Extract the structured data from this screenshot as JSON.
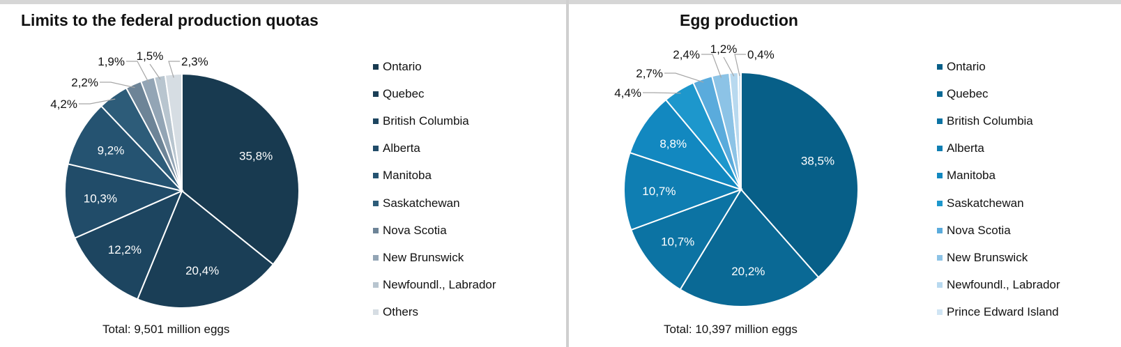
{
  "chart_data": [
    {
      "type": "pie",
      "title": "Limits to the federal production quotas",
      "total_label": "Total: 9,501 million eggs",
      "categories": [
        "Ontario",
        "Quebec",
        "British Columbia",
        "Alberta",
        "Manitoba",
        "Saskatchewan",
        "Nova Scotia",
        "New Brunswick",
        "Newfoundl., Labrador",
        "Others"
      ],
      "values": [
        35.8,
        20.4,
        12.2,
        10.3,
        9.2,
        4.2,
        2.2,
        1.9,
        1.5,
        2.3
      ],
      "labels": [
        "35,8%",
        "20,4%",
        "12,2%",
        "10,3%",
        "9,2%",
        "4,2%",
        "2,2%",
        "1,9%",
        "1,5%",
        "2,3%"
      ],
      "colors": [
        "#183a50",
        "#1a3e56",
        "#1d4560",
        "#214c69",
        "#255371",
        "#2d5c79",
        "#6d8497",
        "#93a5b5",
        "#b8c5cf",
        "#d6dde3"
      ],
      "legend_placement": "right"
    },
    {
      "type": "pie",
      "title": "Egg production",
      "total_label": "Total: 10,397 million eggs",
      "categories": [
        "Ontario",
        "Quebec",
        "British Columbia",
        "Alberta",
        "Manitoba",
        "Saskatchewan",
        "Nova Scotia",
        "New Brunswick",
        "Newfoundl., Labrador",
        "Prince Edward Island"
      ],
      "values": [
        38.5,
        20.2,
        10.7,
        10.7,
        8.8,
        4.4,
        2.7,
        2.4,
        1.2,
        0.4
      ],
      "labels": [
        "38,5%",
        "20,2%",
        "10,7%",
        "10,7%",
        "8,8%",
        "4,4%",
        "2,7%",
        "2,4%",
        "1,2%",
        "0,4%"
      ],
      "colors": [
        "#075f88",
        "#0a6995",
        "#0c73a3",
        "#0f7eb2",
        "#1288c0",
        "#1d97cc",
        "#5aabdc",
        "#8cc3e6",
        "#b8d9ef",
        "#d0e5f4"
      ],
      "legend_placement": "right"
    }
  ]
}
